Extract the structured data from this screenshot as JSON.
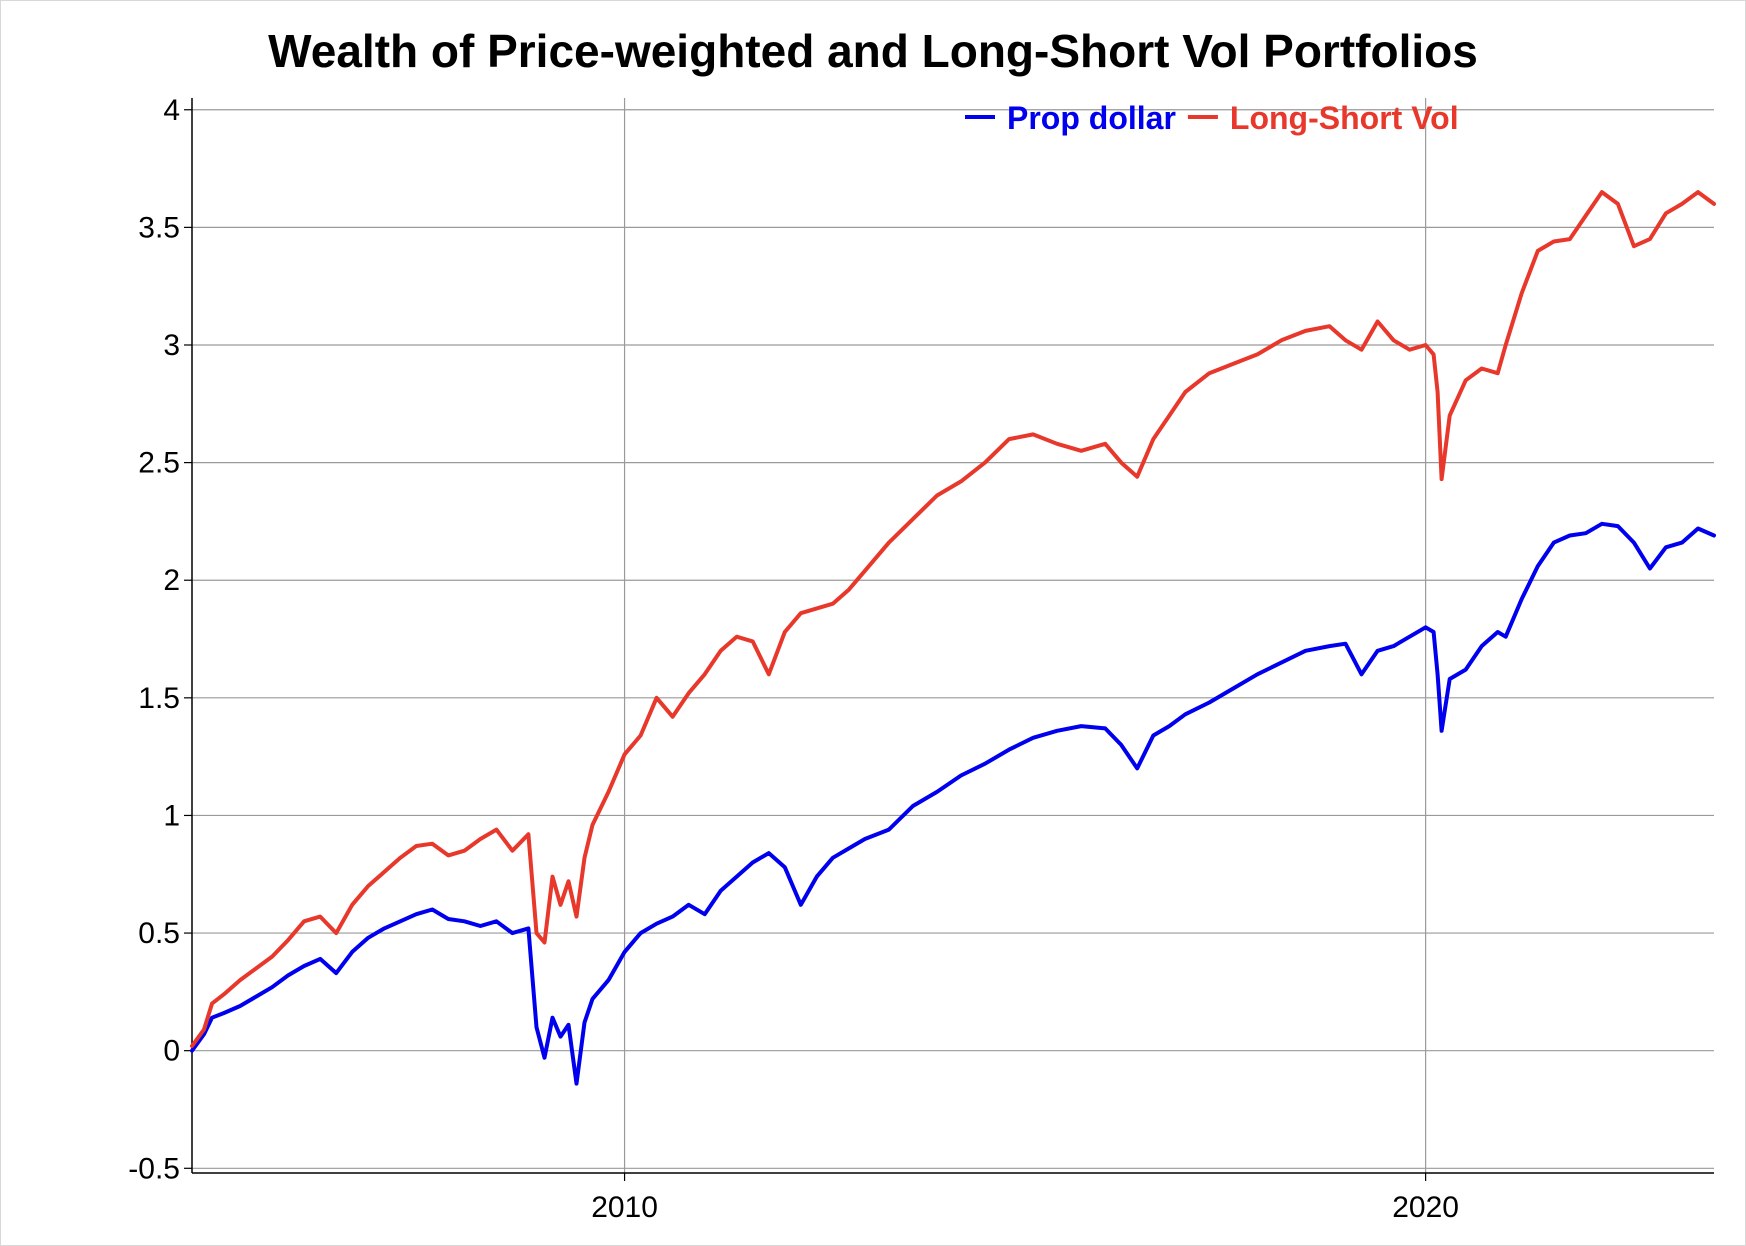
{
  "chart_data": {
    "type": "line",
    "title": "Wealth of Price-weighted and Long-Short Vol Portfolios",
    "xlabel": "",
    "ylabel": "",
    "xlim": [
      2004.6,
      2023.6
    ],
    "ylim": [
      -0.52,
      4.05
    ],
    "x_ticks": [
      2010,
      2020
    ],
    "x_tick_labels": [
      "2010",
      "2020"
    ],
    "y_ticks": [
      -0.5,
      0,
      0.5,
      1,
      1.5,
      2,
      2.5,
      3,
      3.5,
      4
    ],
    "y_tick_labels": [
      "-0.5",
      "0",
      "0.5",
      "1",
      "1.5",
      "2",
      "2.5",
      "3",
      "3.5",
      "4"
    ],
    "grid": true,
    "legend_position": "top-right",
    "series": [
      {
        "name": "Prop dollar",
        "color": "#0000ee",
        "x": [
          2004.6,
          2004.75,
          2004.85,
          2005.0,
          2005.2,
          2005.4,
          2005.6,
          2005.8,
          2006.0,
          2006.2,
          2006.4,
          2006.6,
          2006.8,
          2007.0,
          2007.2,
          2007.4,
          2007.6,
          2007.8,
          2008.0,
          2008.2,
          2008.4,
          2008.6,
          2008.8,
          2008.9,
          2009.0,
          2009.1,
          2009.2,
          2009.3,
          2009.4,
          2009.5,
          2009.6,
          2009.8,
          2010.0,
          2010.2,
          2010.4,
          2010.6,
          2010.8,
          2011.0,
          2011.2,
          2011.4,
          2011.6,
          2011.8,
          2012.0,
          2012.2,
          2012.4,
          2012.6,
          2012.8,
          2013.0,
          2013.3,
          2013.6,
          2013.9,
          2014.2,
          2014.5,
          2014.8,
          2015.1,
          2015.4,
          2015.7,
          2016.0,
          2016.2,
          2016.4,
          2016.6,
          2016.8,
          2017.0,
          2017.3,
          2017.6,
          2017.9,
          2018.2,
          2018.5,
          2018.8,
          2019.0,
          2019.2,
          2019.4,
          2019.6,
          2019.8,
          2020.0,
          2020.1,
          2020.15,
          2020.2,
          2020.3,
          2020.5,
          2020.7,
          2020.9,
          2021.0,
          2021.2,
          2021.4,
          2021.6,
          2021.8,
          2022.0,
          2022.2,
          2022.4,
          2022.6,
          2022.8,
          2023.0,
          2023.2,
          2023.4,
          2023.6
        ],
        "values": [
          0.0,
          0.07,
          0.14,
          0.16,
          0.19,
          0.23,
          0.27,
          0.32,
          0.36,
          0.39,
          0.33,
          0.42,
          0.48,
          0.52,
          0.55,
          0.58,
          0.6,
          0.56,
          0.55,
          0.53,
          0.55,
          0.5,
          0.52,
          0.1,
          -0.03,
          0.14,
          0.06,
          0.11,
          -0.14,
          0.12,
          0.22,
          0.3,
          0.42,
          0.5,
          0.54,
          0.57,
          0.62,
          0.58,
          0.68,
          0.74,
          0.8,
          0.84,
          0.78,
          0.62,
          0.74,
          0.82,
          0.86,
          0.9,
          0.94,
          1.04,
          1.1,
          1.17,
          1.22,
          1.28,
          1.33,
          1.36,
          1.38,
          1.37,
          1.3,
          1.2,
          1.34,
          1.38,
          1.43,
          1.48,
          1.54,
          1.6,
          1.65,
          1.7,
          1.72,
          1.73,
          1.6,
          1.7,
          1.72,
          1.76,
          1.8,
          1.78,
          1.6,
          1.36,
          1.58,
          1.62,
          1.72,
          1.78,
          1.76,
          1.92,
          2.06,
          2.16,
          2.19,
          2.2,
          2.24,
          2.23,
          2.16,
          2.05,
          2.14,
          2.16,
          2.22,
          2.19
        ]
      },
      {
        "name": "Long-Short Vol",
        "color": "#e8382b",
        "x": [
          2004.6,
          2004.75,
          2004.85,
          2005.0,
          2005.2,
          2005.4,
          2005.6,
          2005.8,
          2006.0,
          2006.2,
          2006.4,
          2006.6,
          2006.8,
          2007.0,
          2007.2,
          2007.4,
          2007.6,
          2007.8,
          2008.0,
          2008.2,
          2008.4,
          2008.6,
          2008.8,
          2008.9,
          2009.0,
          2009.1,
          2009.2,
          2009.3,
          2009.4,
          2009.5,
          2009.6,
          2009.8,
          2010.0,
          2010.2,
          2010.4,
          2010.6,
          2010.8,
          2011.0,
          2011.2,
          2011.4,
          2011.6,
          2011.8,
          2012.0,
          2012.2,
          2012.4,
          2012.6,
          2012.8,
          2013.0,
          2013.3,
          2013.6,
          2013.9,
          2014.2,
          2014.5,
          2014.8,
          2015.1,
          2015.4,
          2015.7,
          2016.0,
          2016.2,
          2016.4,
          2016.6,
          2016.8,
          2017.0,
          2017.3,
          2017.6,
          2017.9,
          2018.2,
          2018.5,
          2018.8,
          2019.0,
          2019.2,
          2019.4,
          2019.6,
          2019.8,
          2020.0,
          2020.1,
          2020.15,
          2020.2,
          2020.3,
          2020.5,
          2020.7,
          2020.9,
          2021.0,
          2021.2,
          2021.4,
          2021.6,
          2021.8,
          2022.0,
          2022.2,
          2022.4,
          2022.6,
          2022.8,
          2023.0,
          2023.2,
          2023.4,
          2023.6
        ],
        "values": [
          0.02,
          0.09,
          0.2,
          0.24,
          0.3,
          0.35,
          0.4,
          0.47,
          0.55,
          0.57,
          0.5,
          0.62,
          0.7,
          0.76,
          0.82,
          0.87,
          0.88,
          0.83,
          0.85,
          0.9,
          0.94,
          0.85,
          0.92,
          0.5,
          0.46,
          0.74,
          0.62,
          0.72,
          0.57,
          0.82,
          0.96,
          1.1,
          1.26,
          1.34,
          1.5,
          1.42,
          1.52,
          1.6,
          1.7,
          1.76,
          1.74,
          1.6,
          1.78,
          1.86,
          1.88,
          1.9,
          1.96,
          2.04,
          2.16,
          2.26,
          2.36,
          2.42,
          2.5,
          2.6,
          2.62,
          2.58,
          2.55,
          2.58,
          2.5,
          2.44,
          2.6,
          2.7,
          2.8,
          2.88,
          2.92,
          2.96,
          3.02,
          3.06,
          3.08,
          3.02,
          2.98,
          3.1,
          3.02,
          2.98,
          3.0,
          2.96,
          2.8,
          2.43,
          2.7,
          2.85,
          2.9,
          2.88,
          3.0,
          3.22,
          3.4,
          3.44,
          3.45,
          3.55,
          3.65,
          3.6,
          3.42,
          3.45,
          3.56,
          3.6,
          3.65,
          3.6
        ]
      }
    ]
  }
}
